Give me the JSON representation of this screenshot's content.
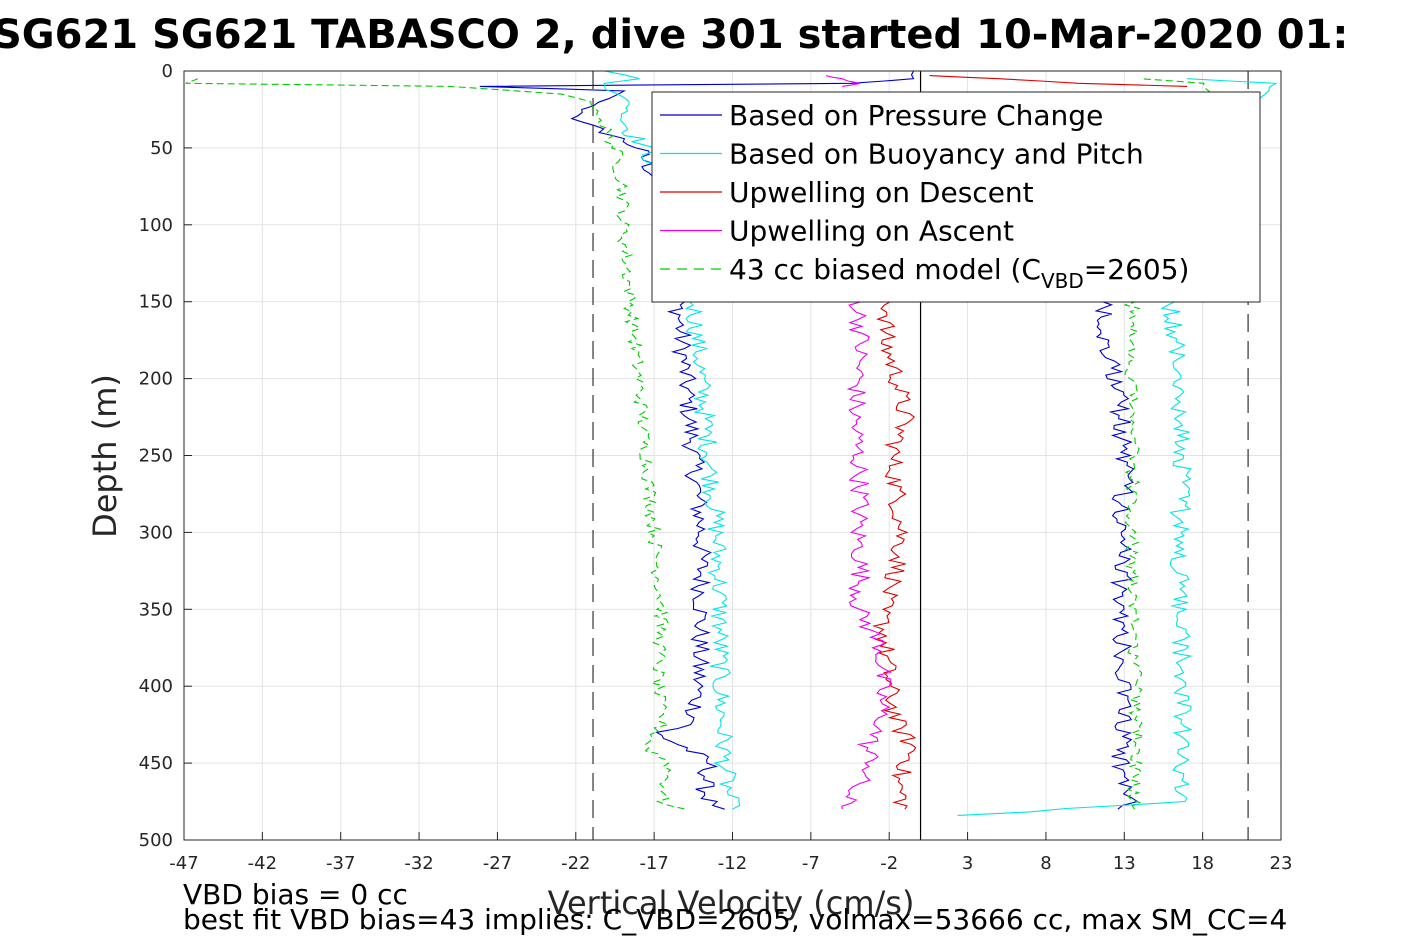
{
  "chart_data": {
    "type": "line",
    "title": "SG621 SG621 TABASCO 2, dive 301 started 10-Mar-2020 01:",
    "xlabel": "Vertical Velocity (cm/s)",
    "ylabel": "Depth (m)",
    "xlim": [
      -47,
      23
    ],
    "ylim": [
      0,
      500
    ],
    "y_reversed": true,
    "grid": true,
    "legend_position": "top-right",
    "xticks": [
      -47,
      -42,
      -37,
      -32,
      -27,
      -22,
      -17,
      -12,
      -7,
      -2,
      3,
      8,
      13,
      18,
      23
    ],
    "yticks": [
      0,
      50,
      100,
      150,
      200,
      250,
      300,
      350,
      400,
      450,
      500
    ],
    "reference_lines": {
      "dashed_x": [
        -20.9,
        20.9
      ],
      "solid_x": [
        0
      ]
    },
    "series": [
      {
        "name": "Based on Pressure Change",
        "color": "#0000cc",
        "style": "solid",
        "descent": {
          "depth": [
            0,
            5,
            8,
            10,
            13,
            18,
            25,
            33,
            40,
            50,
            60,
            75,
            100,
            150,
            200,
            250,
            300,
            350,
            400,
            425,
            430,
            440,
            450,
            465,
            475,
            480
          ],
          "values": [
            -0.5,
            -0.5,
            -4.5,
            -28,
            -19,
            -20,
            -21.5,
            -22,
            -20,
            -18,
            -17.5,
            -16.5,
            -16,
            -15.5,
            -15,
            -14.5,
            -14,
            -14,
            -14.2,
            -14.5,
            -17,
            -15,
            -13.5,
            -13.8,
            -13.5,
            -12.5
          ]
        },
        "ascent": {
          "depth": [
            480,
            475,
            470,
            450,
            400,
            350,
            300,
            250,
            200,
            175,
            160,
            150
          ],
          "values": [
            12,
            13.2,
            13,
            12.8,
            13,
            12.8,
            12.8,
            13,
            12.5,
            11.8,
            11.8,
            11.6
          ]
        }
      },
      {
        "name": "Based on Buoyancy and Pitch",
        "color": "#00e5e5",
        "style": "solid",
        "descent": {
          "depth": [
            0,
            5,
            8,
            12,
            20,
            30,
            40,
            50,
            75,
            100,
            150,
            200,
            250,
            300,
            350,
            400,
            450,
            475,
            480
          ],
          "values": [
            -20,
            -18,
            -20,
            -20,
            -18.5,
            -19,
            -18.5,
            -17.5,
            -16.5,
            -16,
            -14.5,
            -14,
            -13.5,
            -13,
            -12.8,
            -12.8,
            -12.5,
            -12.2,
            -12
          ]
        },
        "ascent": {
          "depth": [
            484,
            475,
            450,
            400,
            350,
            300,
            250,
            200,
            150,
            50,
            20,
            8,
            5
          ],
          "values": [
            3,
            16.5,
            16.5,
            16.8,
            16.5,
            16.5,
            16.8,
            16.5,
            16,
            17.5,
            21.5,
            22.5,
            17
          ]
        }
      },
      {
        "name": "Upwelling on Descent",
        "color": "#dd0000",
        "style": "solid",
        "descent": {
          "depth": [
            150,
            175,
            200,
            225,
            250,
            275,
            300,
            325,
            350,
            400,
            425,
            440,
            450,
            460,
            480
          ],
          "values": [
            -2,
            -2.3,
            -1.5,
            -1,
            -1.8,
            -1.5,
            -1.2,
            -1.5,
            -2.5,
            -2,
            -1.5,
            -0.5,
            -0.8,
            -1.5,
            -1
          ]
        },
        "ascent": {
          "depth": [
            3,
            5,
            8,
            10
          ],
          "values": [
            0.5,
            5,
            10,
            17
          ]
        }
      },
      {
        "name": "Upwelling on Ascent",
        "color": "#ee00ee",
        "style": "solid",
        "descent": {
          "depth": [
            150,
            175,
            200,
            225,
            250,
            275,
            300,
            325,
            350,
            375,
            400,
            425,
            440,
            450,
            470,
            480
          ],
          "values": [
            -4,
            -3.8,
            -4,
            -4.2,
            -4,
            -3.8,
            -4,
            -3.8,
            -4,
            -2.5,
            -2.5,
            -2.5,
            -3.5,
            -3,
            -4.5,
            -5
          ]
        },
        "ascent": {
          "depth": [
            3,
            5,
            8,
            10
          ],
          "values": [
            -6,
            -5,
            -4,
            -5
          ]
        }
      },
      {
        "name": "43 cc biased model (C",
        "name_subscript": "VBD",
        "name_suffix": "=2605)",
        "color": "#00cc00",
        "style": "dashed",
        "descent": {
          "depth": [
            5,
            8,
            10,
            15,
            20,
            30,
            40,
            50,
            75,
            100,
            150,
            200,
            250,
            300,
            350,
            400,
            425,
            440,
            450,
            475,
            480
          ],
          "values": [
            -46,
            -47,
            -30,
            -23,
            -21,
            -20.5,
            -20,
            -19.5,
            -19,
            -19,
            -18.5,
            -18,
            -17.5,
            -17,
            -16.5,
            -16.8,
            -16.5,
            -17.5,
            -16,
            -16.5,
            -15
          ]
        },
        "ascent": {
          "depth": [
            480,
            450,
            400,
            350,
            300,
            250,
            200,
            150,
            100,
            50,
            20,
            8,
            5
          ],
          "values": [
            13.5,
            13.8,
            13.8,
            13.5,
            13.5,
            13.5,
            13.5,
            13.5,
            17,
            18,
            19,
            18,
            14
          ]
        }
      }
    ],
    "footer": [
      "VBD bias = 0 cc",
      "best fit VBD bias=43 implies: C_VBD=2605, volmax=53666 cc, max SM_CC=4"
    ]
  }
}
